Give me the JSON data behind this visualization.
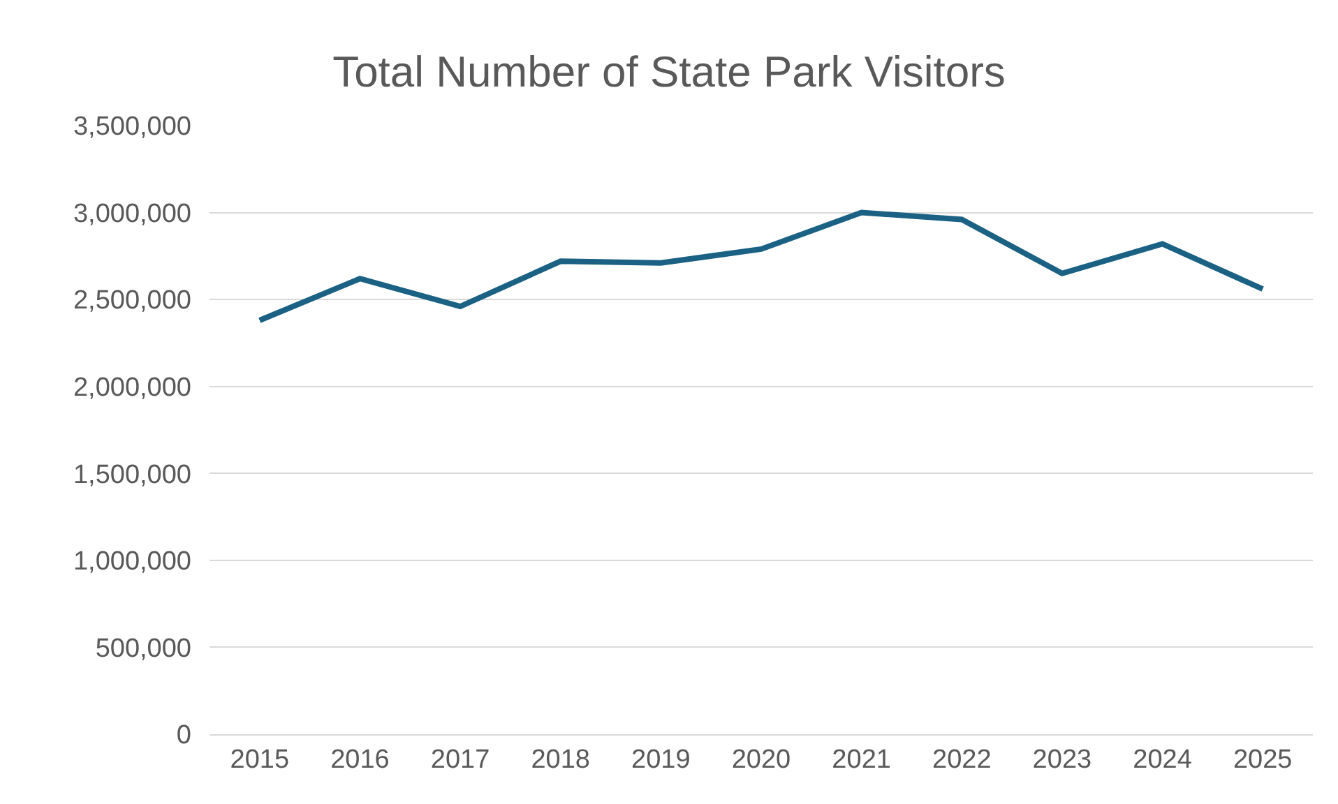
{
  "chart_data": {
    "type": "line",
    "title": "Total Number of State Park Visitors",
    "categories": [
      "2015",
      "2016",
      "2017",
      "2018",
      "2019",
      "2020",
      "2021",
      "2022",
      "2023",
      "2024",
      "2025"
    ],
    "series": [
      {
        "color": "#1a6184",
        "values": [
          2380000,
          2620000,
          2460000,
          2720000,
          2710000,
          2790000,
          3000000,
          2960000,
          2650000,
          2820000,
          2560000
        ]
      }
    ],
    "ylim": [
      0,
      3500000
    ],
    "yticks": [
      {
        "value": 0,
        "label": "0"
      },
      {
        "value": 500000,
        "label": "500,000"
      },
      {
        "value": 1000000,
        "label": "1,000,000"
      },
      {
        "value": 1500000,
        "label": "1,500,000"
      },
      {
        "value": 2000000,
        "label": "2,000,000"
      },
      {
        "value": 2500000,
        "label": "2,500,000"
      },
      {
        "value": 3000000,
        "label": "3,000,000"
      },
      {
        "value": 3500000,
        "label": "3,500,000"
      }
    ],
    "grid": "y",
    "marker": "none",
    "line_style": "solid"
  }
}
